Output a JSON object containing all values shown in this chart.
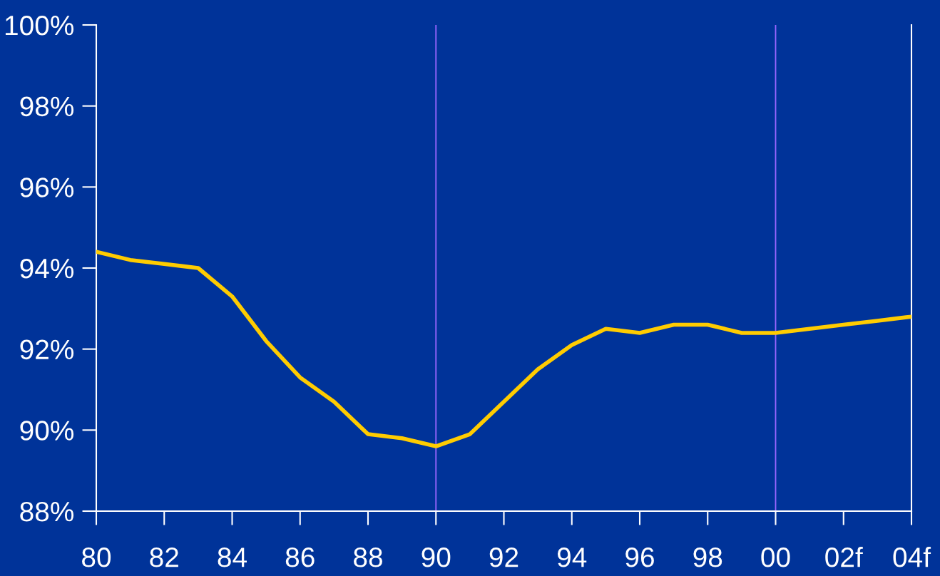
{
  "chart_data": {
    "type": "line",
    "categories": [
      "80",
      null,
      "82",
      null,
      "84",
      null,
      "86",
      null,
      "88",
      null,
      "90",
      null,
      "92",
      null,
      "94",
      null,
      "96",
      null,
      "98",
      null,
      "00",
      null,
      "02f",
      null,
      "04f"
    ],
    "series": [
      {
        "color": "#ffcc00",
        "values": [
          94.4,
          94.2,
          94.1,
          94.0,
          93.3,
          92.2,
          91.3,
          90.7,
          89.9,
          89.8,
          89.6,
          89.9,
          90.7,
          91.5,
          92.1,
          92.5,
          92.4,
          92.6,
          92.6,
          92.4,
          92.4,
          92.5,
          92.6,
          92.7,
          92.8
        ]
      }
    ],
    "ylim": [
      88,
      100
    ],
    "yticks": [
      {
        "value": 88,
        "label": "88%"
      },
      {
        "value": 90,
        "label": "90%"
      },
      {
        "value": 92,
        "label": "92%"
      },
      {
        "value": 94,
        "label": "94%"
      },
      {
        "value": 96,
        "label": "96%"
      },
      {
        "value": 98,
        "label": "98%"
      },
      {
        "value": 100,
        "label": "100%"
      }
    ],
    "ref_lines": [
      {
        "axis": "x",
        "value": "90",
        "color": "#9966ff"
      },
      {
        "axis": "x",
        "value": "00",
        "color": "#9966ff"
      }
    ],
    "grid": false,
    "legend": false,
    "marker": "none",
    "line_style": "solid"
  }
}
